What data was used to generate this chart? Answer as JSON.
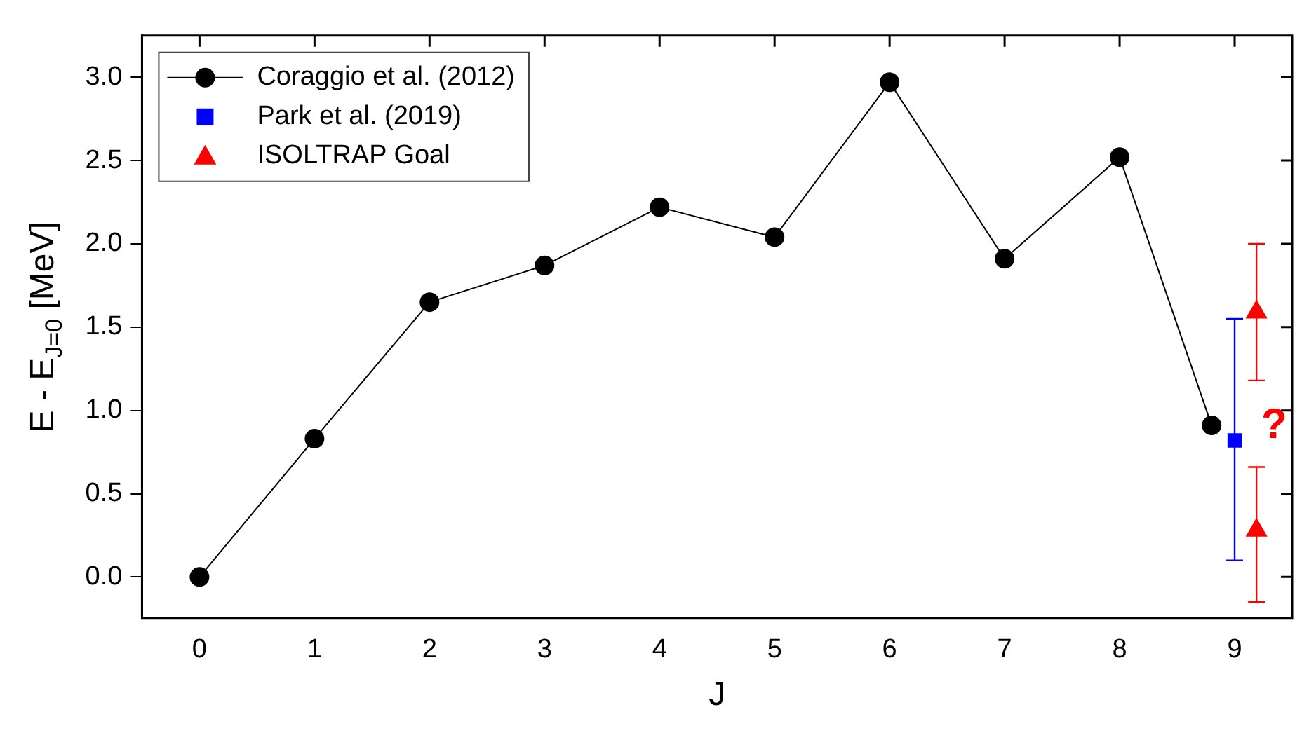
{
  "chart_data": {
    "type": "line",
    "xlabel": "J",
    "ylabel": "E - E$_{J=0}$ [MeV]",
    "xlim": [
      -0.5,
      9.5
    ],
    "xticks": [
      0,
      1,
      2,
      3,
      4,
      5,
      6,
      7,
      8,
      9
    ],
    "ylim": [
      -0.25,
      3.25
    ],
    "yticks": [
      {
        "value": 0,
        "label": "0.0"
      },
      {
        "value": 0.5,
        "label": "0.5"
      },
      {
        "value": 1,
        "label": "1.0"
      },
      {
        "value": 1.5,
        "label": "1.5"
      },
      {
        "value": 2,
        "label": "2.0"
      },
      {
        "value": 2.5,
        "label": "2.5"
      },
      {
        "value": 3,
        "label": "3.0"
      }
    ],
    "grid": false,
    "legend": "top left",
    "series": [
      {
        "name": "Coraggio et al. (2012)",
        "marker": "circle",
        "line_style": "solid",
        "color": "#000000",
        "x": [
          0,
          1,
          2,
          3,
          4,
          5,
          6,
          7,
          8,
          8.8
        ],
        "values": [
          0,
          0.83,
          1.65,
          1.87,
          2.22,
          2.04,
          2.97,
          1.91,
          2.52,
          0.91
        ]
      },
      {
        "name": "Park et al. (2019)",
        "type": "scatter",
        "marker": "square",
        "color": "#0000ff",
        "x": [
          9.0
        ],
        "values": [
          0.82
        ],
        "errors": [
          [
            0.1,
            1.55
          ]
        ]
      },
      {
        "name": "ISOLTRAP Goal",
        "type": "scatter",
        "marker": "triangle",
        "color": "#ff0000",
        "x": [
          9.19,
          9.19
        ],
        "values": [
          1.59,
          0.28
        ],
        "errors": [
          [
            1.18,
            2.0
          ],
          [
            -0.15,
            0.66
          ]
        ]
      }
    ],
    "annotations": [
      "?"
    ]
  }
}
